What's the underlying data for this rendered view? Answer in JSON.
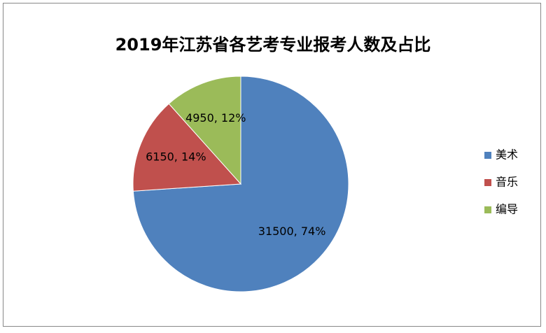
{
  "chart_data": {
    "type": "pie",
    "title": "2019年江苏省各艺考专业报考人数及占比",
    "categories": [
      "美术",
      "音乐",
      "编导"
    ],
    "values": [
      31500,
      6150,
      4950
    ],
    "value_labels": [
      "31500, 74%",
      "6150, 14%",
      "4950, 12%"
    ],
    "colors": [
      "#4f81bd",
      "#c0504d",
      "#9bbb59"
    ],
    "legend": "right"
  }
}
